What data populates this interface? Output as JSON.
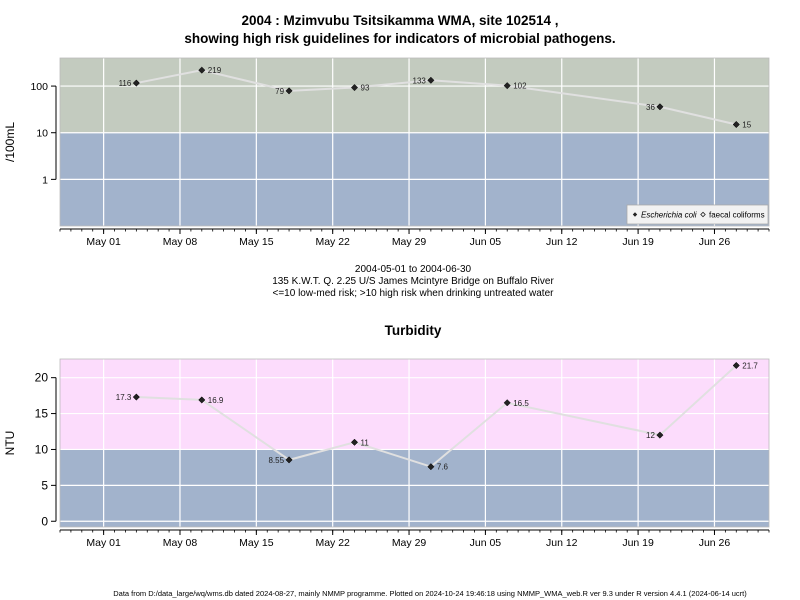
{
  "header": {
    "title_line1": "2004 : Mzimvubu Tsitsikamma WMA, site 102514 ,",
    "title_line2": "showing high risk guidelines for indicators of microbial pathogens."
  },
  "caption": {
    "date_range": "2004-05-01 to 2004-06-30",
    "site": "135 K.W.T. Q. 2.25 U/S James Mcintyre Bridge on Buffalo River",
    "guideline": "<=10 low-med risk; >10 high risk when drinking untreated water"
  },
  "footer": "Data from D:/data_large/wq/wms.db dated 2024-08-27, mainly NMMP programme. Plotted on 2024-10-24 19:46:18 using NMMP_WMA_web.R ver 9.3 under R version 4.4.1 (2024-06-14 ucrt)",
  "x_ticks": [
    {
      "date": "2004-05-01",
      "label": "May 01"
    },
    {
      "date": "2004-05-08",
      "label": "May 08"
    },
    {
      "date": "2004-05-15",
      "label": "May 15"
    },
    {
      "date": "2004-05-22",
      "label": "May 22"
    },
    {
      "date": "2004-05-29",
      "label": "May 29"
    },
    {
      "date": "2004-06-05",
      "label": "Jun 05"
    },
    {
      "date": "2004-06-12",
      "label": "Jun 12"
    },
    {
      "date": "2004-06-19",
      "label": "Jun 19"
    },
    {
      "date": "2004-06-26",
      "label": "Jun 26"
    }
  ],
  "colors": {
    "high_risk_band_top": "#c3cbbf",
    "low_risk_band": "#a2b3cc",
    "high_risk_band_bottom": "#fcdcfc",
    "line": "#e0e0e0",
    "grid": "#ffffff",
    "point": "#222222"
  },
  "chart_data": [
    {
      "type": "line",
      "title": "",
      "xlabel": "",
      "ylabel": "/100mL",
      "y_scale": "log",
      "ylim": [
        0.1,
        400
      ],
      "y_ticks": [
        1,
        10,
        100
      ],
      "y_tick_labels": [
        "1",
        "10",
        "100"
      ],
      "xlim": [
        "2004-04-27",
        "2004-07-01"
      ],
      "guideline_threshold": 10,
      "grid": true,
      "legend_position": "bottom-right",
      "legend": [
        "Escherichia coli",
        "faecal coliforms"
      ],
      "series": [
        {
          "name": "Escherichia coli",
          "x": [
            "2004-05-04",
            "2004-05-10",
            "2004-05-18",
            "2004-05-24",
            "2004-05-31",
            "2004-06-07",
            "2004-06-21",
            "2004-06-28"
          ],
          "values": [
            116,
            219,
            79,
            93,
            133,
            102,
            36,
            15
          ],
          "labels": [
            "116",
            "219",
            "79",
            "93",
            "133",
            "102",
            "36",
            "15"
          ],
          "label_side": [
            "left",
            "right",
            "left",
            "right",
            "left",
            "right",
            "left",
            "right"
          ]
        }
      ]
    },
    {
      "type": "line",
      "title": "Turbidity",
      "xlabel": "",
      "ylabel": "NTU",
      "y_scale": "linear",
      "ylim": [
        -0.8,
        22.6
      ],
      "y_ticks": [
        0,
        5,
        10,
        15,
        20
      ],
      "y_tick_labels": [
        "0",
        "5",
        "10",
        "15",
        "20"
      ],
      "xlim": [
        "2004-04-27",
        "2004-07-01"
      ],
      "guideline_threshold": 10,
      "grid": true,
      "series": [
        {
          "name": "",
          "x": [
            "2004-05-04",
            "2004-05-10",
            "2004-05-18",
            "2004-05-24",
            "2004-05-31",
            "2004-06-07",
            "2004-06-21",
            "2004-06-28"
          ],
          "values": [
            17.3,
            16.9,
            8.55,
            11,
            7.6,
            16.5,
            12,
            21.7
          ],
          "labels": [
            "17.3",
            "16.9",
            "8.55",
            "11",
            "7.6",
            "16.5",
            "12",
            "21.7"
          ],
          "label_side": [
            "left",
            "right",
            "left",
            "right",
            "right",
            "right",
            "left",
            "right"
          ]
        }
      ]
    }
  ]
}
